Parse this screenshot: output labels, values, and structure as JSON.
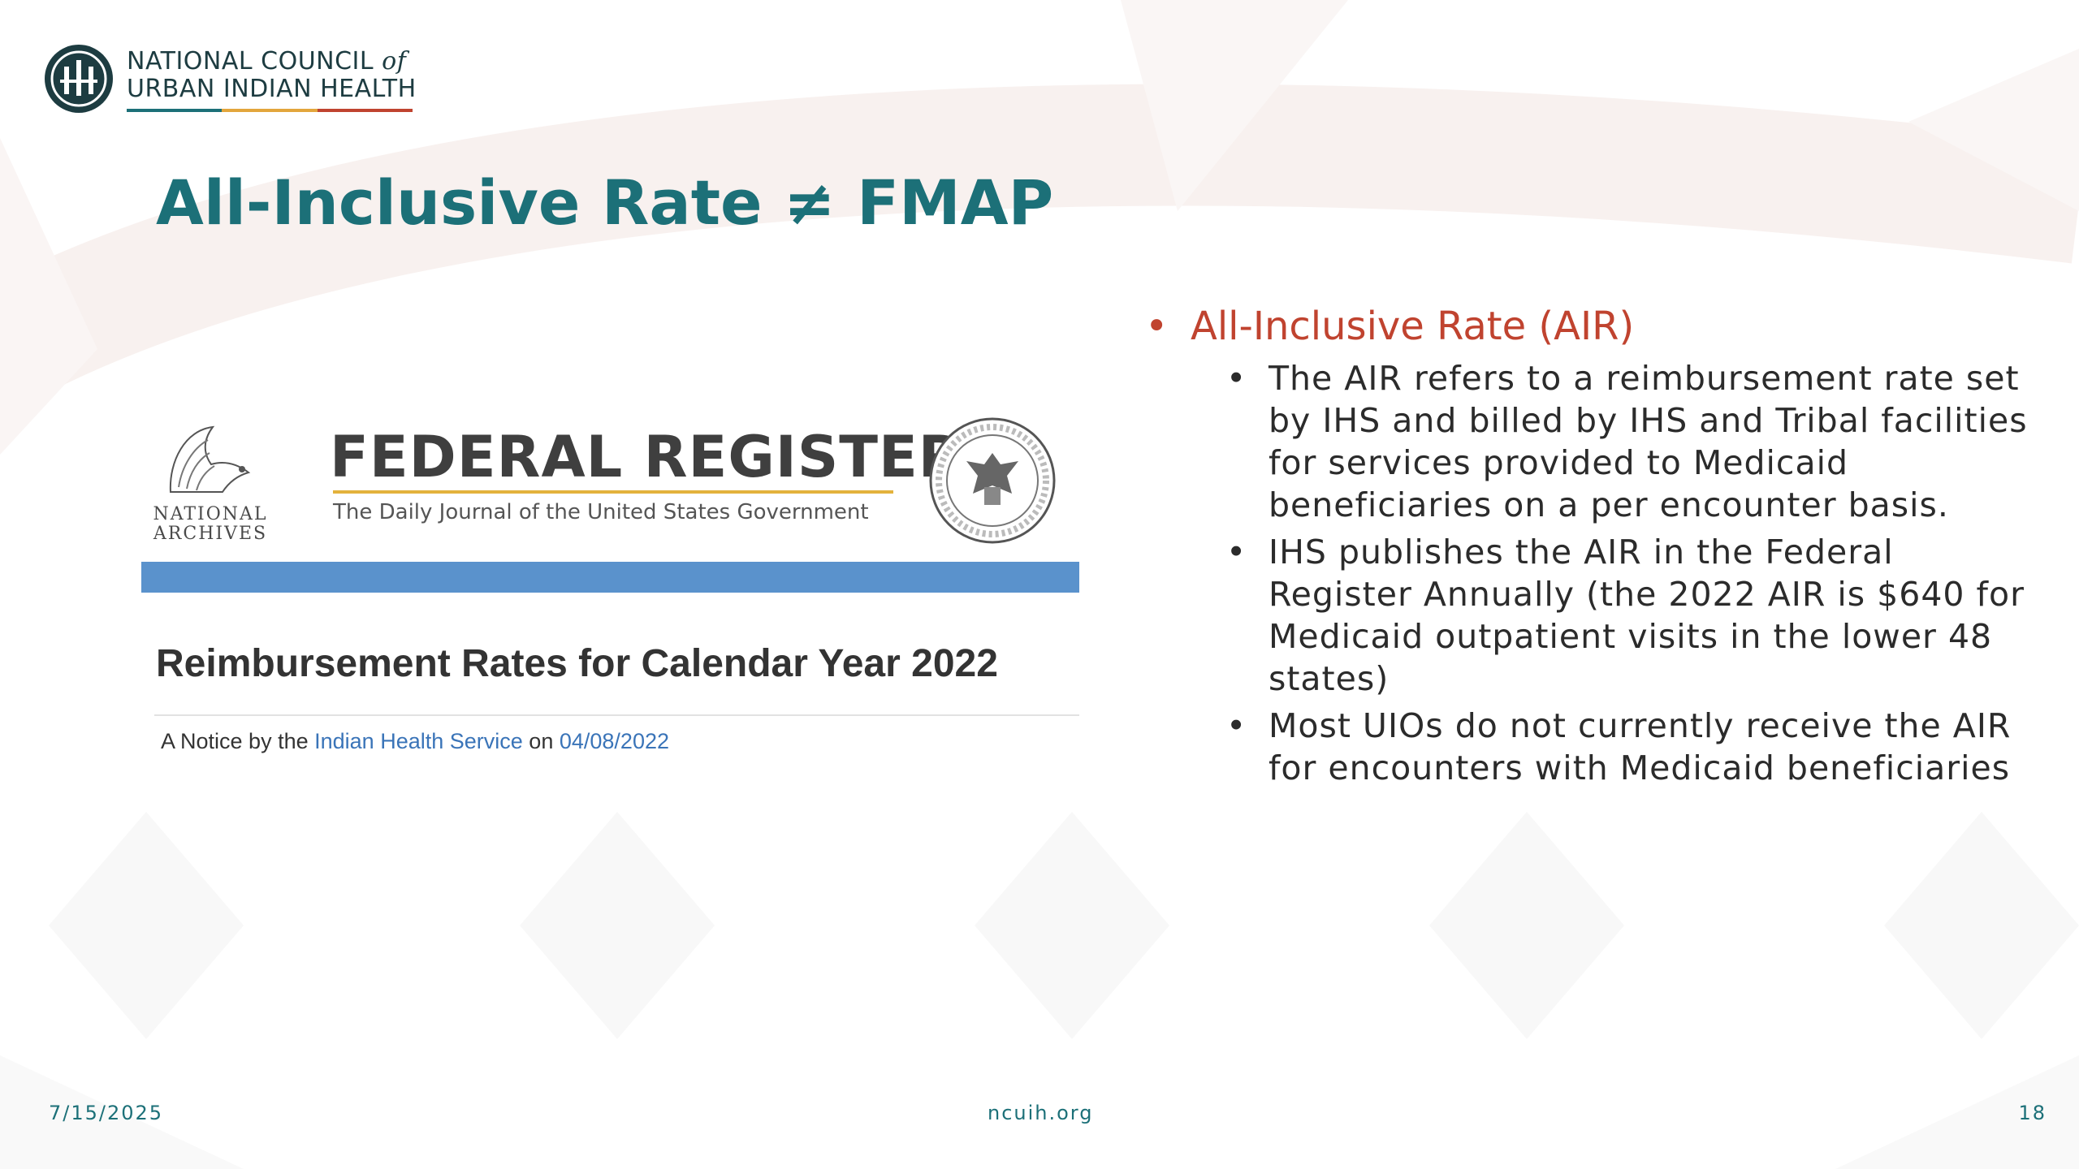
{
  "logo": {
    "line1": "NATIONAL COUNCIL",
    "of": "of",
    "line2": "URBAN INDIAN HEALTH"
  },
  "slide": {
    "title": "All-Inclusive Rate ≠ FMAP"
  },
  "image": {
    "archives_line1": "NATIONAL",
    "archives_line2": "ARCHIVES",
    "register_name": "FEDERAL REGISTER",
    "register_subtitle": "The Daily Journal of the United States Government",
    "document_title": "Reimbursement Rates for Calendar Year 2022",
    "notice_prefix": "A Notice by the",
    "notice_agency": "Indian Health Service",
    "notice_on": "on",
    "notice_date": "04/08/2022"
  },
  "bullets": {
    "main": "All-Inclusive Rate (AIR)",
    "sub": [
      "The AIR refers to a reimbursement rate set by IHS and billed by IHS and Tribal facilities for services provided to Medicaid beneficiaries on a per encounter basis.",
      "IHS publishes the AIR in the Federal Register Annually (the 2022 AIR is $640 for Medicaid outpatient visits in the lower 48 states)",
      "Most UIOs do not currently receive the AIR for encounters with Medicaid beneficiaries"
    ]
  },
  "footer": {
    "date": "7/15/2025",
    "site": "ncuih.org",
    "page": "18"
  },
  "colors": {
    "title_teal": "#1c7078",
    "bullet_red": "#c0432f",
    "register_blue": "#5a92cc",
    "register_gold": "#e3b23c",
    "logo_rule": [
      "#1c7078",
      "#e3a63c",
      "#c0432f"
    ]
  }
}
